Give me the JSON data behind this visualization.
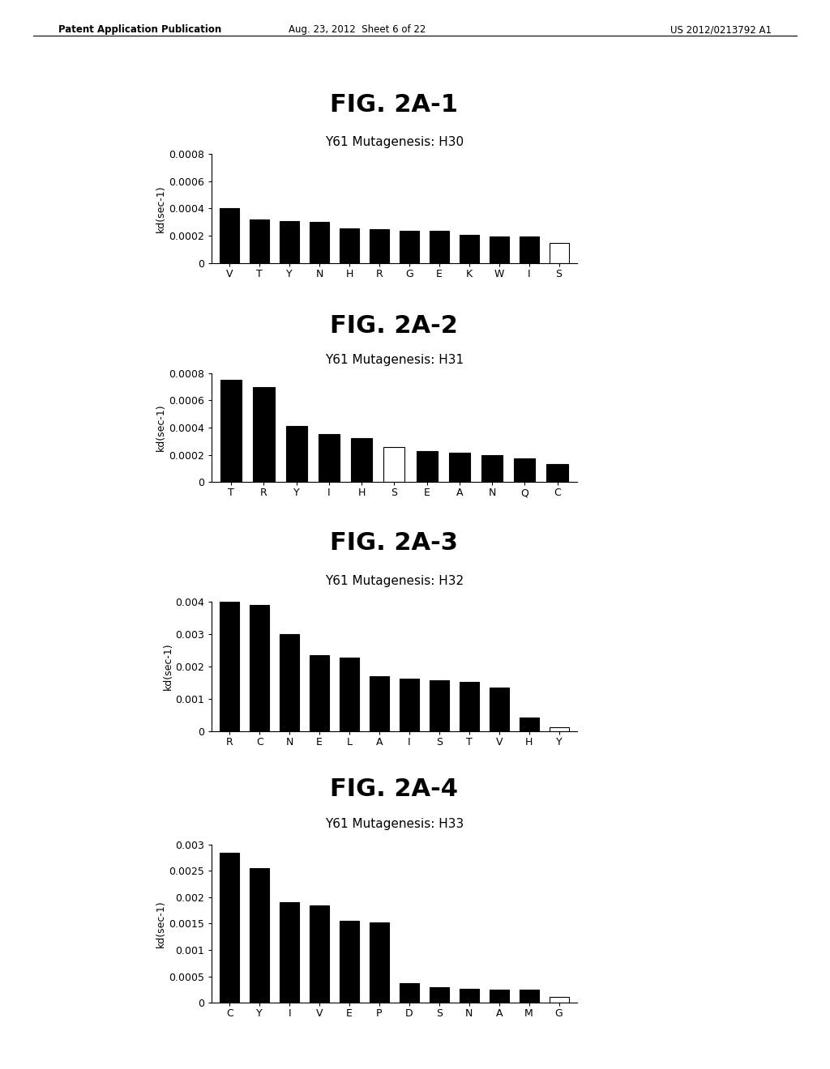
{
  "fig1": {
    "title": "FIG. 2A-1",
    "subtitle": "Y61 Mutagenesis: H30",
    "categories": [
      "V",
      "T",
      "Y",
      "N",
      "H",
      "R",
      "G",
      "E",
      "K",
      "W",
      "I",
      "S"
    ],
    "values": [
      0.0004,
      0.00032,
      0.00031,
      0.0003,
      0.000255,
      0.000245,
      0.000235,
      0.000235,
      0.000205,
      0.000195,
      0.000195,
      0.000145
    ],
    "colors": [
      "#000000",
      "#000000",
      "#000000",
      "#000000",
      "#000000",
      "#000000",
      "#000000",
      "#000000",
      "#000000",
      "#000000",
      "#000000",
      "#ffffff"
    ],
    "ylim": [
      0,
      0.0008
    ],
    "yticks": [
      0,
      0.0002,
      0.0004,
      0.0006,
      0.0008
    ],
    "ylabel": "kd(sec-1)"
  },
  "fig2": {
    "title": "FIG. 2A-2",
    "subtitle": "Y61 Mutagenesis: H31",
    "categories": [
      "T",
      "R",
      "Y",
      "I",
      "H",
      "S",
      "E",
      "A",
      "N",
      "Q",
      "C"
    ],
    "values": [
      0.00075,
      0.0007,
      0.00041,
      0.000355,
      0.000325,
      0.00026,
      0.00023,
      0.000215,
      0.0002,
      0.000175,
      0.000135
    ],
    "colors": [
      "#000000",
      "#000000",
      "#000000",
      "#000000",
      "#000000",
      "#ffffff",
      "#000000",
      "#000000",
      "#000000",
      "#000000",
      "#000000"
    ],
    "ylim": [
      0,
      0.0008
    ],
    "yticks": [
      0,
      0.0002,
      0.0004,
      0.0006,
      0.0008
    ],
    "ylabel": "kd(sec-1)"
  },
  "fig3": {
    "title": "FIG. 2A-3",
    "subtitle": "Y61 Mutagenesis: H32",
    "categories": [
      "R",
      "C",
      "N",
      "E",
      "L",
      "A",
      "I",
      "S",
      "T",
      "V",
      "H",
      "Y"
    ],
    "values": [
      0.00405,
      0.0039,
      0.003,
      0.00235,
      0.00228,
      0.0017,
      0.00163,
      0.00157,
      0.00152,
      0.00135,
      0.00042,
      0.00011
    ],
    "colors": [
      "#000000",
      "#000000",
      "#000000",
      "#000000",
      "#000000",
      "#000000",
      "#000000",
      "#000000",
      "#000000",
      "#000000",
      "#000000",
      "#ffffff"
    ],
    "ylim": [
      0,
      0.004
    ],
    "yticks": [
      0,
      0.001,
      0.002,
      0.003,
      0.004
    ],
    "ylabel": "kd(sec-1)"
  },
  "fig4": {
    "title": "FIG. 2A-4",
    "subtitle": "Y61 Mutagenesis: H33",
    "categories": [
      "C",
      "Y",
      "I",
      "V",
      "E",
      "P",
      "D",
      "S",
      "N",
      "A",
      "M",
      "G"
    ],
    "values": [
      0.00285,
      0.00255,
      0.0019,
      0.00185,
      0.00155,
      0.00152,
      0.00037,
      0.00029,
      0.00026,
      0.00025,
      0.000245,
      0.00011
    ],
    "colors": [
      "#000000",
      "#000000",
      "#000000",
      "#000000",
      "#000000",
      "#000000",
      "#000000",
      "#000000",
      "#000000",
      "#000000",
      "#000000",
      "#ffffff"
    ],
    "ylim": [
      0,
      0.003
    ],
    "yticks": [
      0,
      0.0005,
      0.001,
      0.0015,
      0.002,
      0.0025,
      0.003
    ],
    "ylabel": "kd(sec-1)"
  },
  "header_left": "Patent Application Publication",
  "header_center": "Aug. 23, 2012  Sheet 6 of 22",
  "header_right": "US 2012/0213792 A1",
  "background_color": "#ffffff",
  "title_fontsize": 22,
  "subtitle_fontsize": 11,
  "axis_fontsize": 9,
  "ylabel_fontsize": 9
}
